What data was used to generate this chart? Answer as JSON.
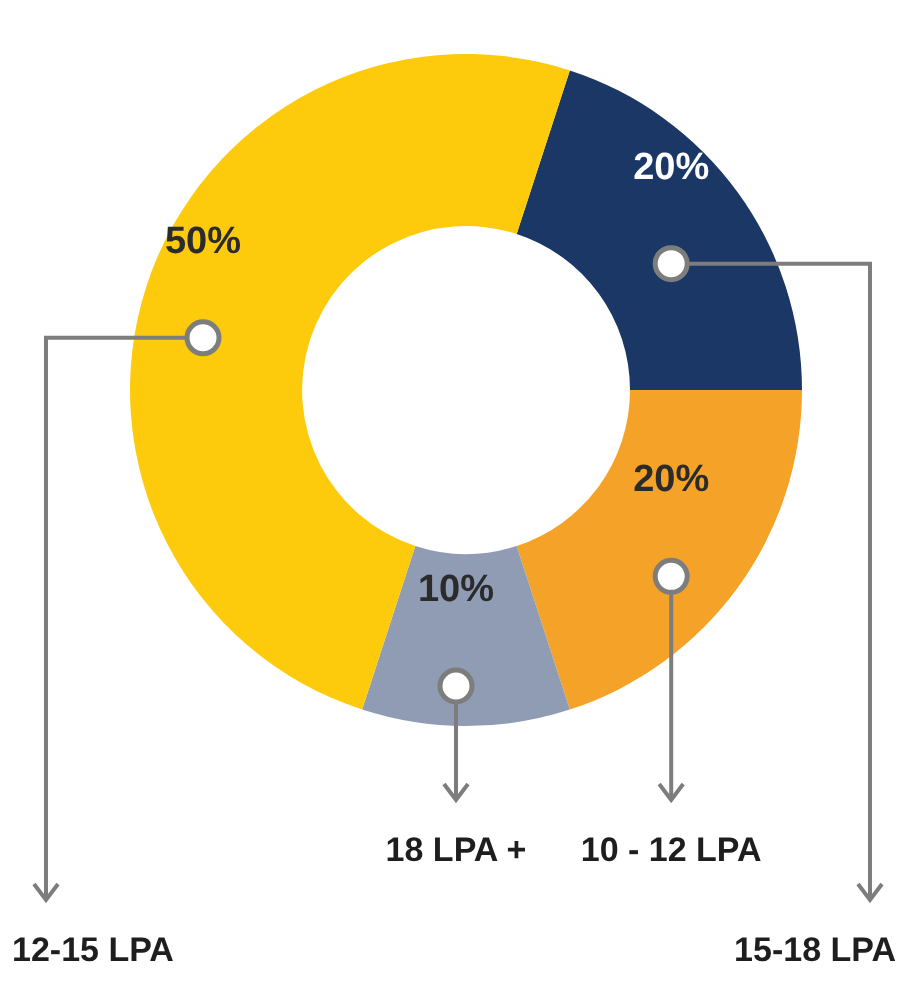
{
  "chart_data": {
    "type": "donut",
    "categories": [
      "15-18 LPA",
      "10 - 12 LPA",
      "18 LPA +",
      "12-15 LPA"
    ],
    "values": [
      20,
      20,
      10,
      50
    ],
    "value_labels": [
      "20%",
      "20%",
      "10%",
      "50%"
    ],
    "colors": [
      "#1b3766",
      "#f4a228",
      "#8f9cb3",
      "#fdca0c"
    ]
  }
}
